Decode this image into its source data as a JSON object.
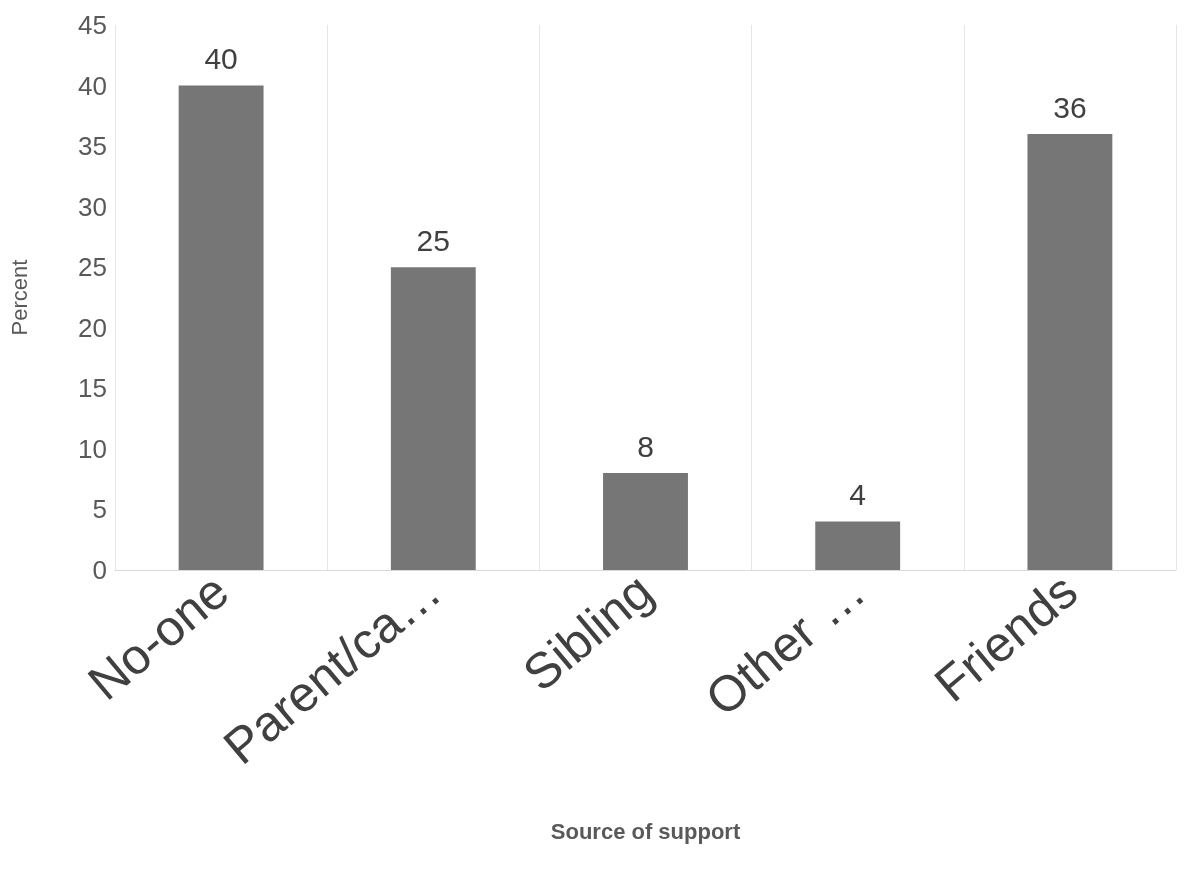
{
  "chart_data": {
    "type": "bar",
    "xlabel": "Source of support",
    "ylabel": "Percent",
    "categories": [
      "No-one",
      "Parent/ca…",
      "Sibling",
      "Other …",
      "Friends"
    ],
    "values": [
      40,
      25,
      8,
      4,
      36
    ],
    "color": "#767676",
    "ylim": [
      0,
      45
    ],
    "yticks": [
      0,
      5,
      10,
      15,
      20,
      25,
      30,
      35,
      40,
      45
    ],
    "grid": "x",
    "data_labels": true
  }
}
